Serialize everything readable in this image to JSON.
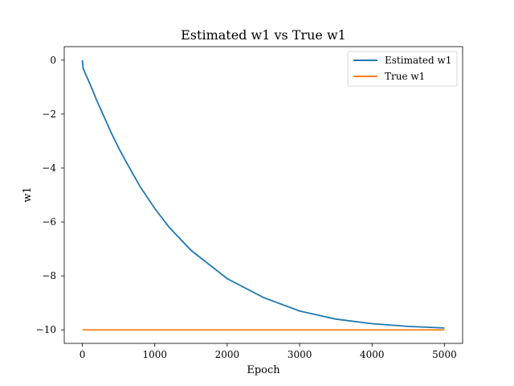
{
  "chart_data": {
    "type": "line",
    "title": "Estimated w1 vs True w1",
    "xlabel": "Epoch",
    "ylabel": "w1",
    "xlim": [
      -250,
      5250
    ],
    "ylim": [
      -10.5,
      0.5
    ],
    "xticks": [
      0,
      1000,
      2000,
      3000,
      4000,
      5000
    ],
    "yticks": [
      0,
      -2,
      -4,
      -6,
      -8,
      -10
    ],
    "xtick_labels": [
      "0",
      "1000",
      "2000",
      "3000",
      "4000",
      "5000"
    ],
    "ytick_labels": [
      "0",
      "−2",
      "−4",
      "−6",
      "−8",
      "−10"
    ],
    "grid": false,
    "legend_position": "upper right",
    "series": [
      {
        "name": "Estimated w1",
        "color": "#1f77b4",
        "x": [
          0,
          10,
          50,
          100,
          200,
          300,
          400,
          500,
          600,
          800,
          1000,
          1200,
          1500,
          2000,
          2500,
          3000,
          3500,
          4000,
          4500,
          5000
        ],
        "y": [
          0.0,
          -0.3,
          -0.55,
          -0.85,
          -1.5,
          -2.1,
          -2.7,
          -3.25,
          -3.75,
          -4.7,
          -5.5,
          -6.2,
          -7.05,
          -8.1,
          -8.8,
          -9.3,
          -9.6,
          -9.77,
          -9.87,
          -9.93
        ]
      },
      {
        "name": "True w1",
        "color": "#ff7f0e",
        "x": [
          0,
          5000
        ],
        "y": [
          -10.0,
          -10.0
        ]
      }
    ]
  }
}
